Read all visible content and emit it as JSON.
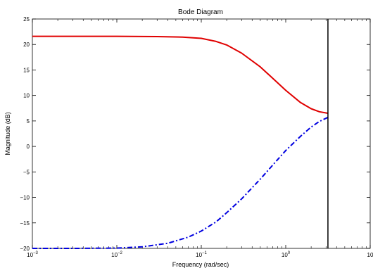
{
  "chart_data": {
    "type": "line",
    "title": "Bode Diagram",
    "xlabel": "Frequency  (rad/sec)",
    "ylabel": "Magnitude (dB)",
    "x_scale": "log",
    "xlim": [
      0.001,
      10
    ],
    "ylim": [
      -20,
      25
    ],
    "grid": false,
    "x_ticks": [
      {
        "value": 0.001,
        "base": "10",
        "exp": "−3"
      },
      {
        "value": 0.01,
        "base": "10",
        "exp": "−2"
      },
      {
        "value": 0.1,
        "base": "10",
        "exp": "−1"
      },
      {
        "value": 1,
        "base": "10",
        "exp": "0"
      },
      {
        "value": 10,
        "base": "10",
        "exp": ""
      }
    ],
    "y_ticks": [
      {
        "value": 25,
        "label": "25"
      },
      {
        "value": 20,
        "label": "20"
      },
      {
        "value": 15,
        "label": "15"
      },
      {
        "value": 10,
        "label": "10"
      },
      {
        "value": 5,
        "label": "5"
      },
      {
        "value": 0,
        "label": "0"
      },
      {
        "value": -5,
        "label": "−5"
      },
      {
        "value": -10,
        "label": "−10"
      },
      {
        "value": -15,
        "label": "−15"
      },
      {
        "value": -20,
        "label": "−20"
      }
    ],
    "vertical_line_x": 3.16,
    "series": [
      {
        "color": "#e00000",
        "style": "solid",
        "x": [
          0.001,
          0.003,
          0.01,
          0.03,
          0.06,
          0.1,
          0.15,
          0.2,
          0.3,
          0.5,
          0.8,
          1.0,
          1.5,
          2.0,
          2.5,
          3.16
        ],
        "values": [
          21.6,
          21.6,
          21.6,
          21.55,
          21.45,
          21.2,
          20.6,
          19.9,
          18.3,
          15.6,
          12.5,
          11.0,
          8.6,
          7.4,
          6.8,
          6.5
        ]
      },
      {
        "color": "#0000e0",
        "style": "dashdot",
        "x": [
          0.001,
          0.003,
          0.01,
          0.02,
          0.04,
          0.07,
          0.1,
          0.15,
          0.2,
          0.3,
          0.5,
          0.8,
          1.0,
          1.5,
          2.0,
          2.5,
          3.16
        ],
        "values": [
          -20.0,
          -20.0,
          -19.95,
          -19.7,
          -19.0,
          -17.8,
          -16.6,
          -14.8,
          -13.0,
          -10.3,
          -6.4,
          -2.6,
          -0.8,
          2.0,
          3.8,
          4.9,
          5.7
        ]
      }
    ]
  }
}
